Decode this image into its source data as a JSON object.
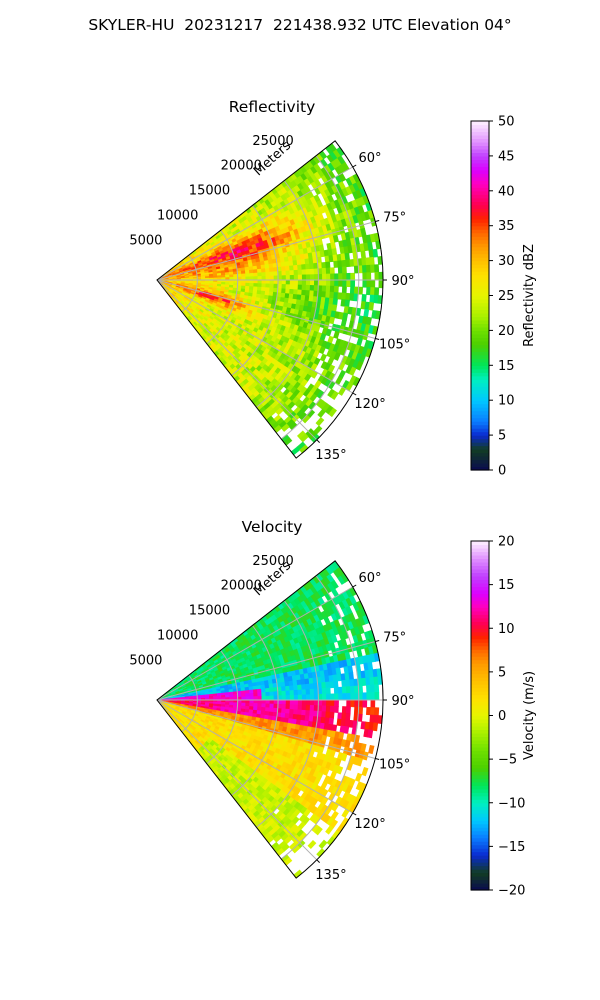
{
  "figure": {
    "title": "SKYLER-HU  20231217  221438.932 UTC Elevation 04°"
  },
  "chart_data": [
    {
      "type": "heatmap",
      "projection": "polar-sector",
      "title": "Reflectivity",
      "radial_label": "Meters",
      "radial_ticks": [
        5000,
        10000,
        15000,
        20000,
        25000
      ],
      "radial_tick_labels": [
        "5000",
        "10000",
        "15000",
        "20000",
        "25000"
      ],
      "r_max": 28000,
      "theta_range_deg": [
        52,
        142
      ],
      "theta_ticks_deg": [
        60,
        75,
        90,
        105,
        120,
        135
      ],
      "theta_tick_labels": [
        "60°",
        "75°",
        "90°",
        "105°",
        "120°",
        "135°"
      ],
      "grid": true,
      "colorbar": {
        "label": "Reflectivity dBZ",
        "range": [
          0,
          50
        ],
        "ticks": [
          0,
          5,
          10,
          15,
          20,
          25,
          30,
          35,
          40,
          45,
          50
        ],
        "tick_labels": [
          "0",
          "5",
          "10",
          "15",
          "20",
          "25",
          "30",
          "35",
          "40",
          "45",
          "50"
        ]
      },
      "colormap_stops": [
        [
          0,
          "#0a0a50"
        ],
        [
          3,
          "#123d23"
        ],
        [
          5,
          "#0a2ad0"
        ],
        [
          7,
          "#0a7dff"
        ],
        [
          10,
          "#00c8ff"
        ],
        [
          13,
          "#00f0c0"
        ],
        [
          15,
          "#00e65a"
        ],
        [
          18,
          "#4cd000"
        ],
        [
          20,
          "#6ee000"
        ],
        [
          22,
          "#a8f000"
        ],
        [
          25,
          "#e6f500"
        ],
        [
          28,
          "#ffe000"
        ],
        [
          30,
          "#ffc000"
        ],
        [
          32,
          "#ff9a00"
        ],
        [
          34,
          "#ff6800"
        ],
        [
          36,
          "#ff2200"
        ],
        [
          38,
          "#ff0050"
        ],
        [
          41,
          "#ff00c0"
        ],
        [
          43,
          "#dc00ff"
        ],
        [
          45,
          "#c040ff"
        ],
        [
          47,
          "#e090ff"
        ],
        [
          50,
          "#fff2ff"
        ]
      ],
      "field_description": [
        {
          "feature": "background",
          "value_dbz": 23
        },
        {
          "feature": "near-range band east",
          "value_dbz": 32
        },
        {
          "feature": "core along ~70° radial, 5-17 km",
          "value_dbz": 36
        },
        {
          "feature": "core along ~107° radial, 4-11 km",
          "value_dbz": 35
        },
        {
          "feature": "far range beyond 20 km",
          "value_dbz": 19
        }
      ]
    },
    {
      "type": "heatmap",
      "projection": "polar-sector",
      "title": "Velocity",
      "radial_label": "Meters",
      "radial_ticks": [
        5000,
        10000,
        15000,
        20000,
        25000
      ],
      "radial_tick_labels": [
        "5000",
        "10000",
        "15000",
        "20000",
        "25000"
      ],
      "r_max": 28000,
      "theta_range_deg": [
        52,
        142
      ],
      "theta_ticks_deg": [
        60,
        75,
        90,
        105,
        120,
        135
      ],
      "theta_tick_labels": [
        "60°",
        "75°",
        "90°",
        "105°",
        "120°",
        "135°"
      ],
      "grid": true,
      "colorbar": {
        "label": "Velocity (m/s)",
        "range": [
          -20,
          20
        ],
        "ticks": [
          -20,
          -15,
          -10,
          -5,
          0,
          5,
          10,
          15,
          20
        ],
        "tick_labels": [
          "−20",
          "−15",
          "−10",
          "−5",
          "0",
          "5",
          "10",
          "15",
          "20"
        ]
      },
      "colormap_stops": [
        [
          -20,
          "#0a0a50"
        ],
        [
          -18,
          "#123d23"
        ],
        [
          -16,
          "#0a2ad0"
        ],
        [
          -14,
          "#0a7dff"
        ],
        [
          -12,
          "#00c8ff"
        ],
        [
          -10,
          "#00f0c0"
        ],
        [
          -8,
          "#00e65a"
        ],
        [
          -6,
          "#4cd000"
        ],
        [
          -4,
          "#6ee000"
        ],
        [
          -2,
          "#a8f000"
        ],
        [
          0,
          "#e6f500"
        ],
        [
          2,
          "#ffe000"
        ],
        [
          4,
          "#ffc000"
        ],
        [
          6,
          "#ff9a00"
        ],
        [
          7.5,
          "#ff6800"
        ],
        [
          9,
          "#ff2200"
        ],
        [
          10.5,
          "#ff0050"
        ],
        [
          12.5,
          "#ff00c0"
        ],
        [
          14,
          "#dc00ff"
        ],
        [
          16,
          "#c040ff"
        ],
        [
          18,
          "#e090ff"
        ],
        [
          20,
          "#fff2ff"
        ]
      ],
      "field_description": [
        {
          "feature": "north-east sector (52°-78°)",
          "value_ms": -8
        },
        {
          "feature": "band 78°-84°",
          "value_ms": -12
        },
        {
          "feature": "band 84°-90° near range",
          "value_ms": 13
        },
        {
          "feature": "jet 92°-100°, 5-22 km",
          "value_ms": 10
        },
        {
          "feature": "southern sector (105°-142°)",
          "value_ms": 2
        },
        {
          "feature": "south-west edge",
          "value_ms": -2
        }
      ]
    }
  ]
}
